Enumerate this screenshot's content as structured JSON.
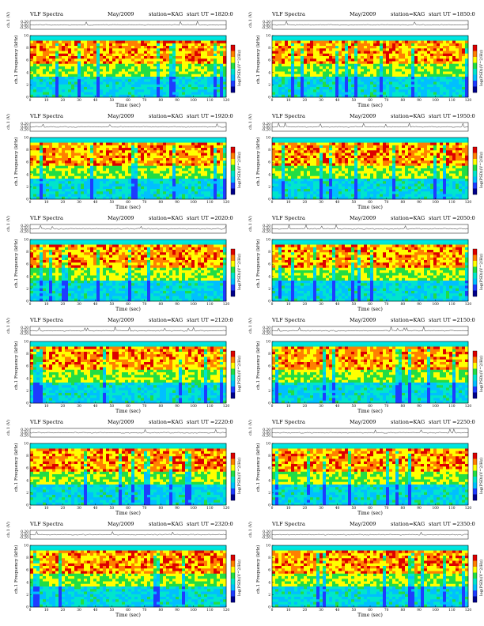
{
  "figure": {
    "header_prefix": "VLF Spectra",
    "date": "May/2009",
    "station_label": "station=KAG",
    "start_prefix": "start UT =",
    "ch_label": "ch.1 (V)",
    "freq_label": "ch.1 Frequency (kHz)",
    "xlabel": "Time (sec)",
    "cbar_label": "log(PSD)(V^2/Hz)",
    "ch_ticks": [
      "0.20",
      "0.00",
      "-0.20"
    ],
    "freq_ticks": [
      "0",
      "2",
      "4",
      "6",
      "8",
      "10"
    ],
    "time_ticks": [
      "0",
      "10",
      "20",
      "30",
      "40",
      "50",
      "60",
      "70",
      "80",
      "90",
      "100",
      "110",
      "120"
    ],
    "colors": {
      "colormap": [
        "#00008b",
        "#1e3cff",
        "#00bfff",
        "#00e5cc",
        "#22dd44",
        "#ffff00",
        "#ff8000",
        "#dd0000"
      ],
      "trace": "#000000",
      "band_top": "#00e5e5"
    }
  },
  "panels": [
    {
      "start_ut": "1820:0",
      "seed": 3
    },
    {
      "start_ut": "1850:0",
      "seed": 7
    },
    {
      "start_ut": "1920:0",
      "seed": 11
    },
    {
      "start_ut": "1950:0",
      "seed": 13
    },
    {
      "start_ut": "2020:0",
      "seed": 17
    },
    {
      "start_ut": "2050:0",
      "seed": 19
    },
    {
      "start_ut": "2120:0",
      "seed": 23
    },
    {
      "start_ut": "2150:0",
      "seed": 29
    },
    {
      "start_ut": "2220:0",
      "seed": 31
    },
    {
      "start_ut": "2250:0",
      "seed": 37
    },
    {
      "start_ut": "2320:0",
      "seed": 41
    },
    {
      "start_ut": "2350:0",
      "seed": 43
    }
  ],
  "chart_data": {
    "type": "heatmap",
    "title": "VLF Spectra",
    "xlabel": "Time (sec)",
    "ylabel": "ch.1 Frequency (kHz)",
    "xlim": [
      0,
      120
    ],
    "ylim": [
      0,
      10
    ],
    "colorbar_label": "log(PSD)(V^2/Hz)",
    "panels": [
      "1820:0",
      "1850:0",
      "1920:0",
      "1950:0",
      "2020:0",
      "2050:0",
      "2120:0",
      "2150:0",
      "2220:0",
      "2250:0",
      "2320:0",
      "2350:0"
    ]
  }
}
